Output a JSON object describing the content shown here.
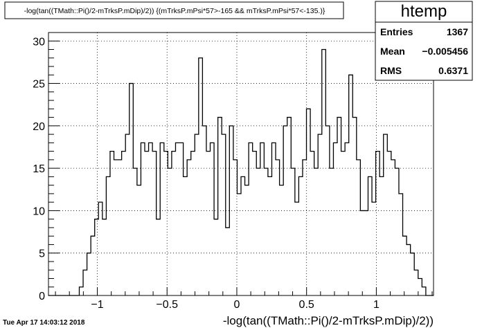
{
  "chart_data": {
    "type": "bar",
    "histogram_style": "step",
    "title": "-log(tan((TMath::Pi()/2-mTrksP.mDip)/2)) {(mTrksP.mPsi*57>-165 && mTrksP.mPsi*57<-135.)}",
    "xlabel": "-log(tan((TMath::Pi()/2-mTrksP.mDip)/2))",
    "ylabel": "",
    "xlim": [
      -1.35,
      1.41
    ],
    "ylim": [
      0,
      31
    ],
    "grid": true,
    "x_ticks": [
      -1,
      -0.5,
      0,
      0.5,
      1
    ],
    "x_tick_labels": [
      "−1",
      "−0.5",
      "0",
      "0.5",
      "1"
    ],
    "y_ticks": [
      0,
      5,
      10,
      15,
      20,
      25,
      30
    ],
    "y_tick_labels": [
      "0",
      "5",
      "10",
      "15",
      "20",
      "25",
      "30"
    ],
    "bin_start": -1.35,
    "bin_width": 0.0276,
    "values": [
      0,
      0,
      0,
      0,
      0,
      0,
      0,
      0,
      1,
      3,
      5,
      7,
      9,
      11,
      9,
      14,
      17,
      16,
      16,
      17,
      19,
      25,
      15,
      13,
      18,
      17,
      18,
      17,
      9,
      18,
      17,
      15,
      17,
      18,
      18,
      14,
      16,
      17,
      19,
      28,
      20,
      17,
      18,
      9,
      21,
      19,
      8,
      20,
      16,
      12,
      14,
      13,
      18,
      17,
      15,
      18,
      15,
      14,
      18,
      16,
      13,
      20,
      21,
      15,
      11,
      14,
      16,
      22,
      17,
      15,
      19,
      29,
      20,
      15,
      18,
      21,
      17,
      18,
      26,
      21,
      16,
      10,
      10,
      14,
      11,
      17,
      14,
      19,
      17,
      16,
      15,
      12,
      7,
      6,
      5,
      3,
      2,
      1,
      0,
      0
    ]
  },
  "stats_box": {
    "name": "htemp",
    "rows": [
      {
        "label": "Entries",
        "value": "1367"
      },
      {
        "label": "Mean",
        "value": "−0.005456"
      },
      {
        "label": "RMS",
        "value": "0.6371"
      }
    ]
  },
  "timestamp": "Tue Apr 17 14:03:12 2018"
}
